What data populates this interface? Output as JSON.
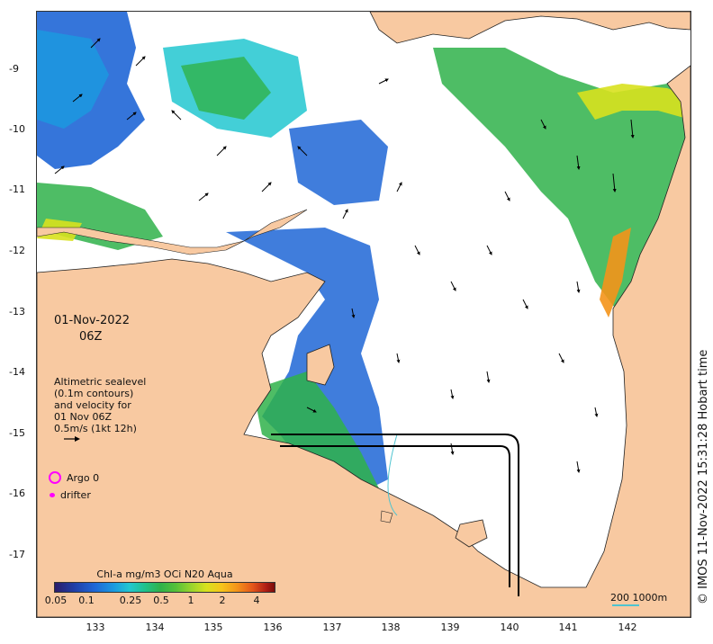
{
  "map": {
    "date": "01-Nov-2022",
    "time": "06Z",
    "altimetry_lines": [
      "Altimetric sealevel",
      "(0.1m contours)",
      "and velocity for",
      "01 Nov 06Z",
      "0.5m/s (1kt 12h)"
    ],
    "legend": {
      "argo": "Argo 0",
      "drifter": "drifter"
    },
    "colorbar": {
      "title": "Chl-a mg/m3 OCi N20 Aqua",
      "ticks": [
        "0.05",
        "0.1",
        "0.25",
        "0.5",
        "1",
        "2",
        "4"
      ]
    },
    "scale_label": "200  1000m",
    "credit": "© IMOS 11-Nov-2022 15:31:28 Hobart time",
    "lat_ticks": [
      "-9",
      "-10",
      "-11",
      "-12",
      "-13",
      "-14",
      "-15",
      "-16",
      "-17"
    ],
    "lon_ticks": [
      "133",
      "134",
      "135",
      "136",
      "137",
      "138",
      "139",
      "140",
      "141",
      "142"
    ],
    "colors": {
      "land": "#f8c9a1",
      "sea": "#ffffff",
      "chl_low": "#1f66d6",
      "chl_mid": "#2fb24a",
      "chl_high": "#f4931a",
      "argo": "#ff00ff",
      "scale_bar": "#4ec4d0"
    }
  }
}
